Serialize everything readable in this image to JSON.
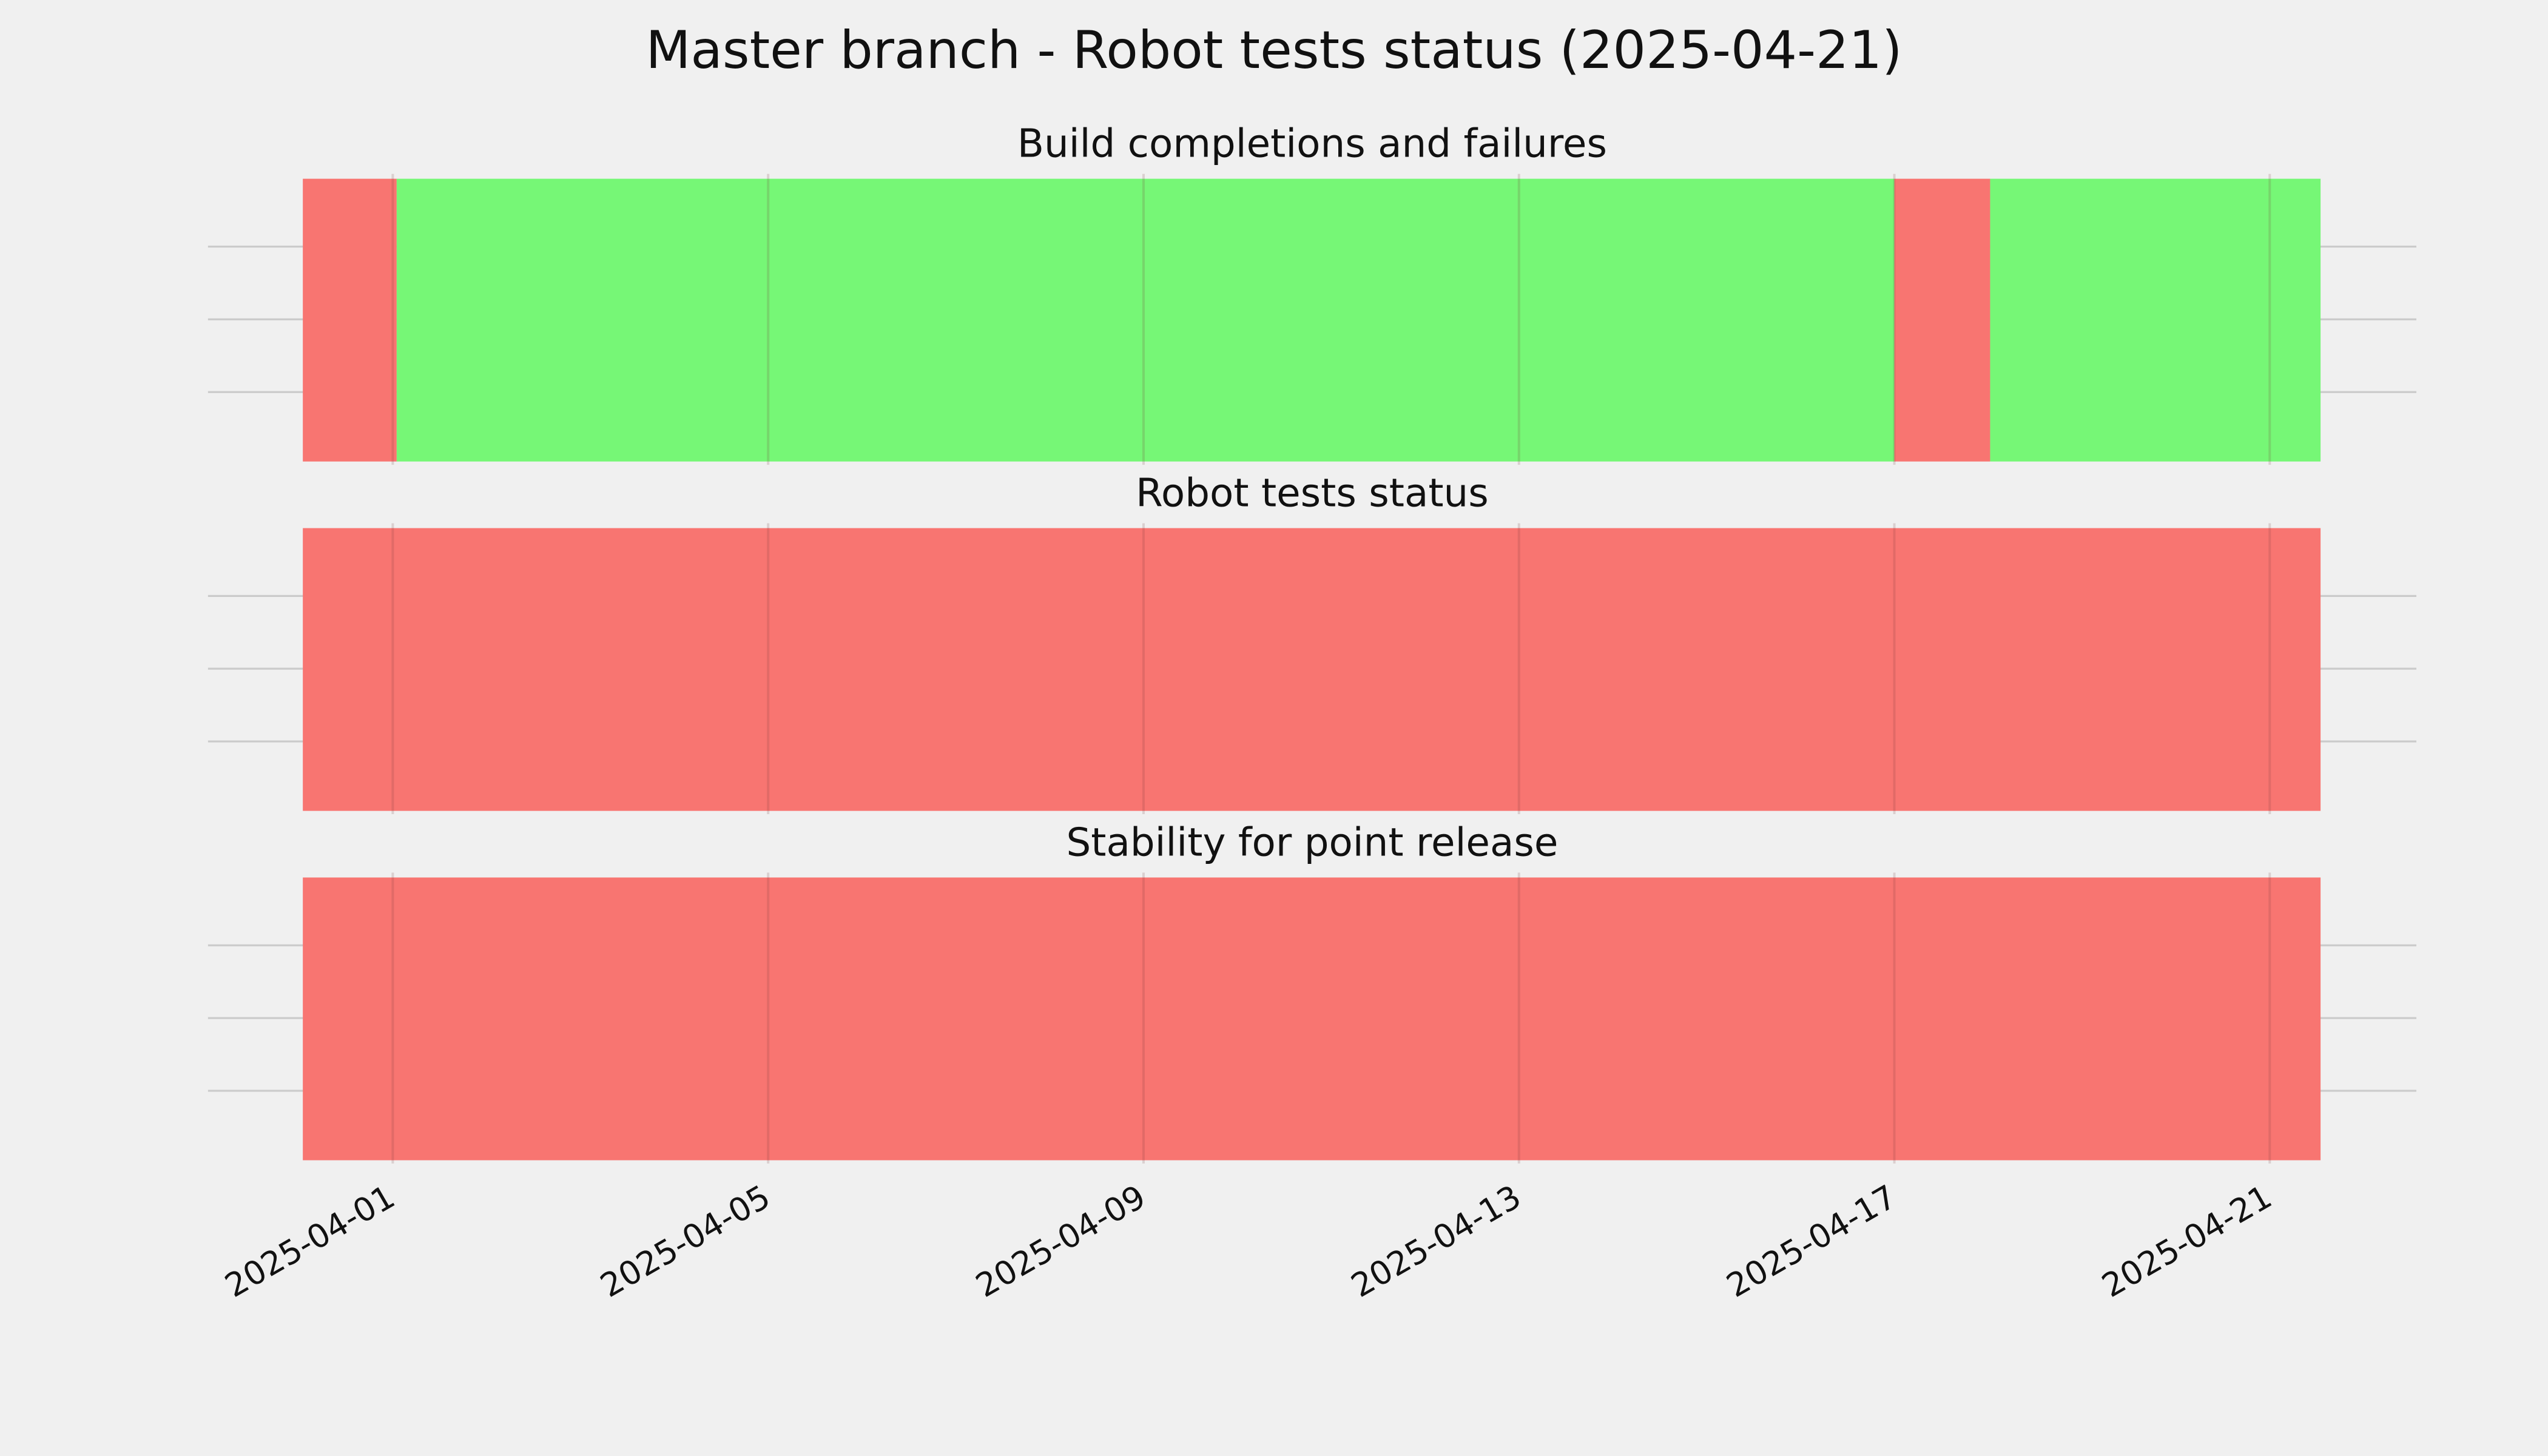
{
  "title": "Master branch - Robot tests status (2025-04-21)",
  "chart_data": [
    {
      "type": "timeline",
      "title": "Build completions and failures",
      "spans": [
        {
          "start": "2025-03-31T01:00",
          "end": "2025-04-01T01:00",
          "color": "#f87571"
        },
        {
          "start": "2025-04-01T01:00",
          "end": "2025-04-17T00:00",
          "color": "#76f776"
        },
        {
          "start": "2025-04-17T00:00",
          "end": "2025-04-18T00:30",
          "color": "#f87571"
        },
        {
          "start": "2025-04-18T00:30",
          "end": "2025-04-21T13:00",
          "color": "#76f776"
        }
      ],
      "xlim": [
        "2025-03-30T00:45",
        "2025-04-22T13:30"
      ],
      "xticks": [
        "2025-04-01",
        "2025-04-05",
        "2025-04-09",
        "2025-04-13",
        "2025-04-17",
        "2025-04-21"
      ],
      "ylim": [
        0,
        1
      ],
      "yticks": [
        0.25,
        0.5,
        0.75
      ],
      "grid": true
    },
    {
      "type": "timeline",
      "title": "Robot tests status",
      "spans": [
        {
          "start": "2025-03-31T01:00",
          "end": "2025-04-21T13:00",
          "color": "#f87571"
        }
      ],
      "xlim": [
        "2025-03-30T00:45",
        "2025-04-22T13:30"
      ],
      "xticks": [
        "2025-04-01",
        "2025-04-05",
        "2025-04-09",
        "2025-04-13",
        "2025-04-17",
        "2025-04-21"
      ],
      "ylim": [
        0,
        1
      ],
      "yticks": [
        0.25,
        0.5,
        0.75
      ],
      "grid": true
    },
    {
      "type": "timeline",
      "title": "Stability for point release",
      "spans": [
        {
          "start": "2025-03-31T01:00",
          "end": "2025-04-21T13:00",
          "color": "#f87571"
        }
      ],
      "xlim": [
        "2025-03-30T00:45",
        "2025-04-22T13:30"
      ],
      "xticks": [
        "2025-04-01",
        "2025-04-05",
        "2025-04-09",
        "2025-04-13",
        "2025-04-17",
        "2025-04-21"
      ],
      "ylim": [
        0,
        1
      ],
      "yticks": [
        0.25,
        0.5,
        0.75
      ],
      "grid": true
    }
  ]
}
